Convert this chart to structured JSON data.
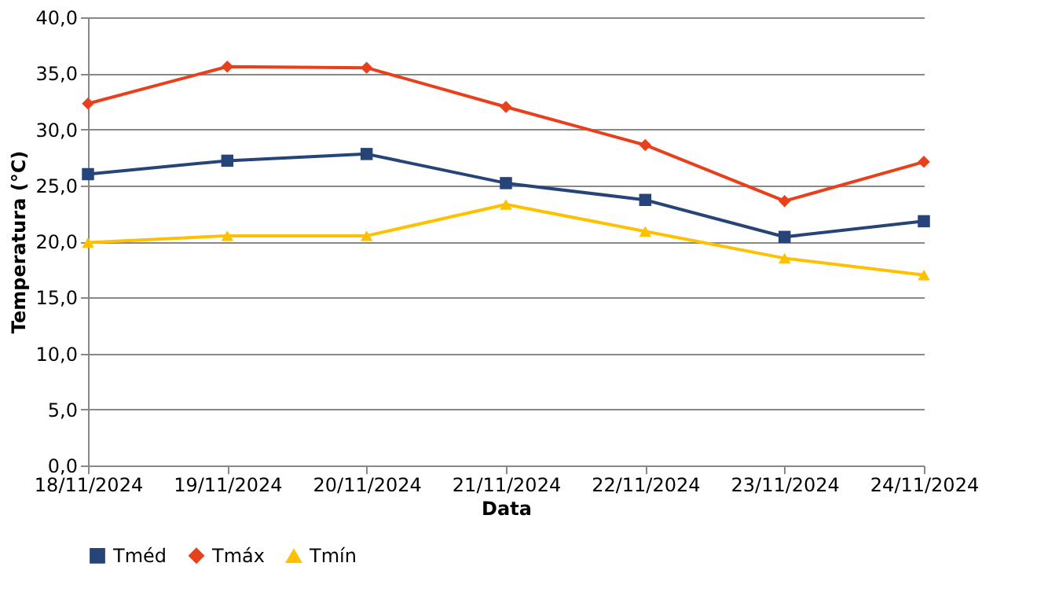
{
  "chart_data": {
    "type": "line",
    "xlabel": "Data",
    "ylabel": "Temperatura (°C)",
    "categories": [
      "18/11/2024",
      "19/11/2024",
      "20/11/2024",
      "21/11/2024",
      "22/11/2024",
      "23/11/2024",
      "24/11/2024"
    ],
    "series": [
      {
        "name": "Tméd",
        "color": "#264478",
        "marker": "square",
        "values": [
          26.0,
          27.2,
          27.8,
          25.2,
          23.7,
          20.4,
          21.8
        ]
      },
      {
        "name": "Tmáx",
        "color": "#e8401c",
        "marker": "diamond",
        "values": [
          32.3,
          35.6,
          35.5,
          32.0,
          28.6,
          23.6,
          27.1
        ]
      },
      {
        "name": "Tmín",
        "color": "#ffc000",
        "marker": "triangle",
        "values": [
          19.9,
          20.5,
          20.5,
          23.3,
          20.9,
          18.5,
          17.0
        ]
      }
    ],
    "ylim": [
      0,
      40
    ],
    "yticks": [
      {
        "value": 0,
        "label": "0,0"
      },
      {
        "value": 5,
        "label": "5,0"
      },
      {
        "value": 10,
        "label": "10,0"
      },
      {
        "value": 15,
        "label": "15,0"
      },
      {
        "value": 20,
        "label": "20,0"
      },
      {
        "value": 25,
        "label": "25,0"
      },
      {
        "value": 30,
        "label": "30,0"
      },
      {
        "value": 35,
        "label": "35,0"
      },
      {
        "value": 40,
        "label": "40,0"
      }
    ],
    "grid": "y",
    "legend": "bottom",
    "line_style": "solid"
  }
}
